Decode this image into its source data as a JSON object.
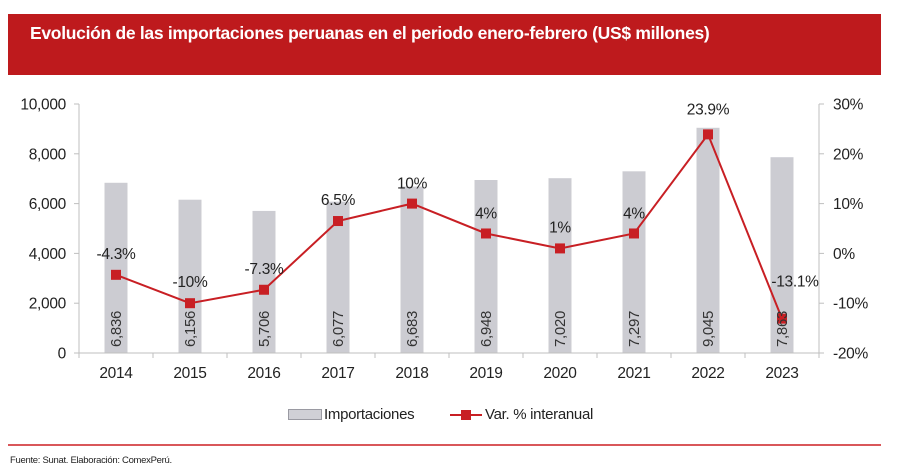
{
  "header": {
    "title": "Evolución de las importaciones peruanas en el periodo enero-febrero (US$ millones)"
  },
  "chart_data": {
    "type": "bar+line",
    "title": "Evolución de las importaciones peruanas en el periodo enero-febrero (US$ millones)",
    "categories": [
      "2014",
      "2015",
      "2016",
      "2017",
      "2018",
      "2019",
      "2020",
      "2021",
      "2022",
      "2023"
    ],
    "series": [
      {
        "name": "Importaciones",
        "type": "bar",
        "axis": "left",
        "values": [
          6836,
          6156,
          5706,
          6077,
          6683,
          6948,
          7020,
          7297,
          9045,
          7863
        ],
        "labels": [
          "6,836",
          "6,156",
          "5,706",
          "6,077",
          "6,683",
          "6,948",
          "7,020",
          "7,297",
          "9,045",
          "7,863"
        ],
        "color": "#ccccd2"
      },
      {
        "name": "Var. % interanual",
        "type": "line",
        "axis": "right",
        "values": [
          -4.3,
          -10,
          -7.3,
          6.5,
          10,
          4,
          1,
          4,
          23.9,
          -13.1
        ],
        "labels": [
          "-4.3%",
          "-10%",
          "-7.3%",
          "6.5%",
          "10%",
          "4%",
          "1%",
          "4%",
          "23.9%",
          "-13.1%"
        ],
        "color": "#c81f24"
      }
    ],
    "left_axis": {
      "ylim": [
        0,
        10000
      ],
      "ticks": [
        0,
        2000,
        4000,
        6000,
        8000,
        10000
      ],
      "tick_labels": [
        "0",
        "2,000",
        "4,000",
        "6,000",
        "8,000",
        "10,000"
      ]
    },
    "right_axis": {
      "ylim": [
        -20,
        30
      ],
      "ticks": [
        -20,
        -10,
        0,
        10,
        20,
        30
      ],
      "tick_labels": [
        "-20%",
        "-10%",
        "0%",
        "10%",
        "20%",
        "30%"
      ]
    },
    "grid": false,
    "legend": {
      "position": "bottom-center",
      "entries": [
        "Importaciones",
        "Var. % interanual"
      ]
    }
  },
  "legend": {
    "bar_label": "Importaciones",
    "line_label": "Var. % interanual"
  },
  "source": "Fuente: Sunat. Elaboración: ComexPerú."
}
